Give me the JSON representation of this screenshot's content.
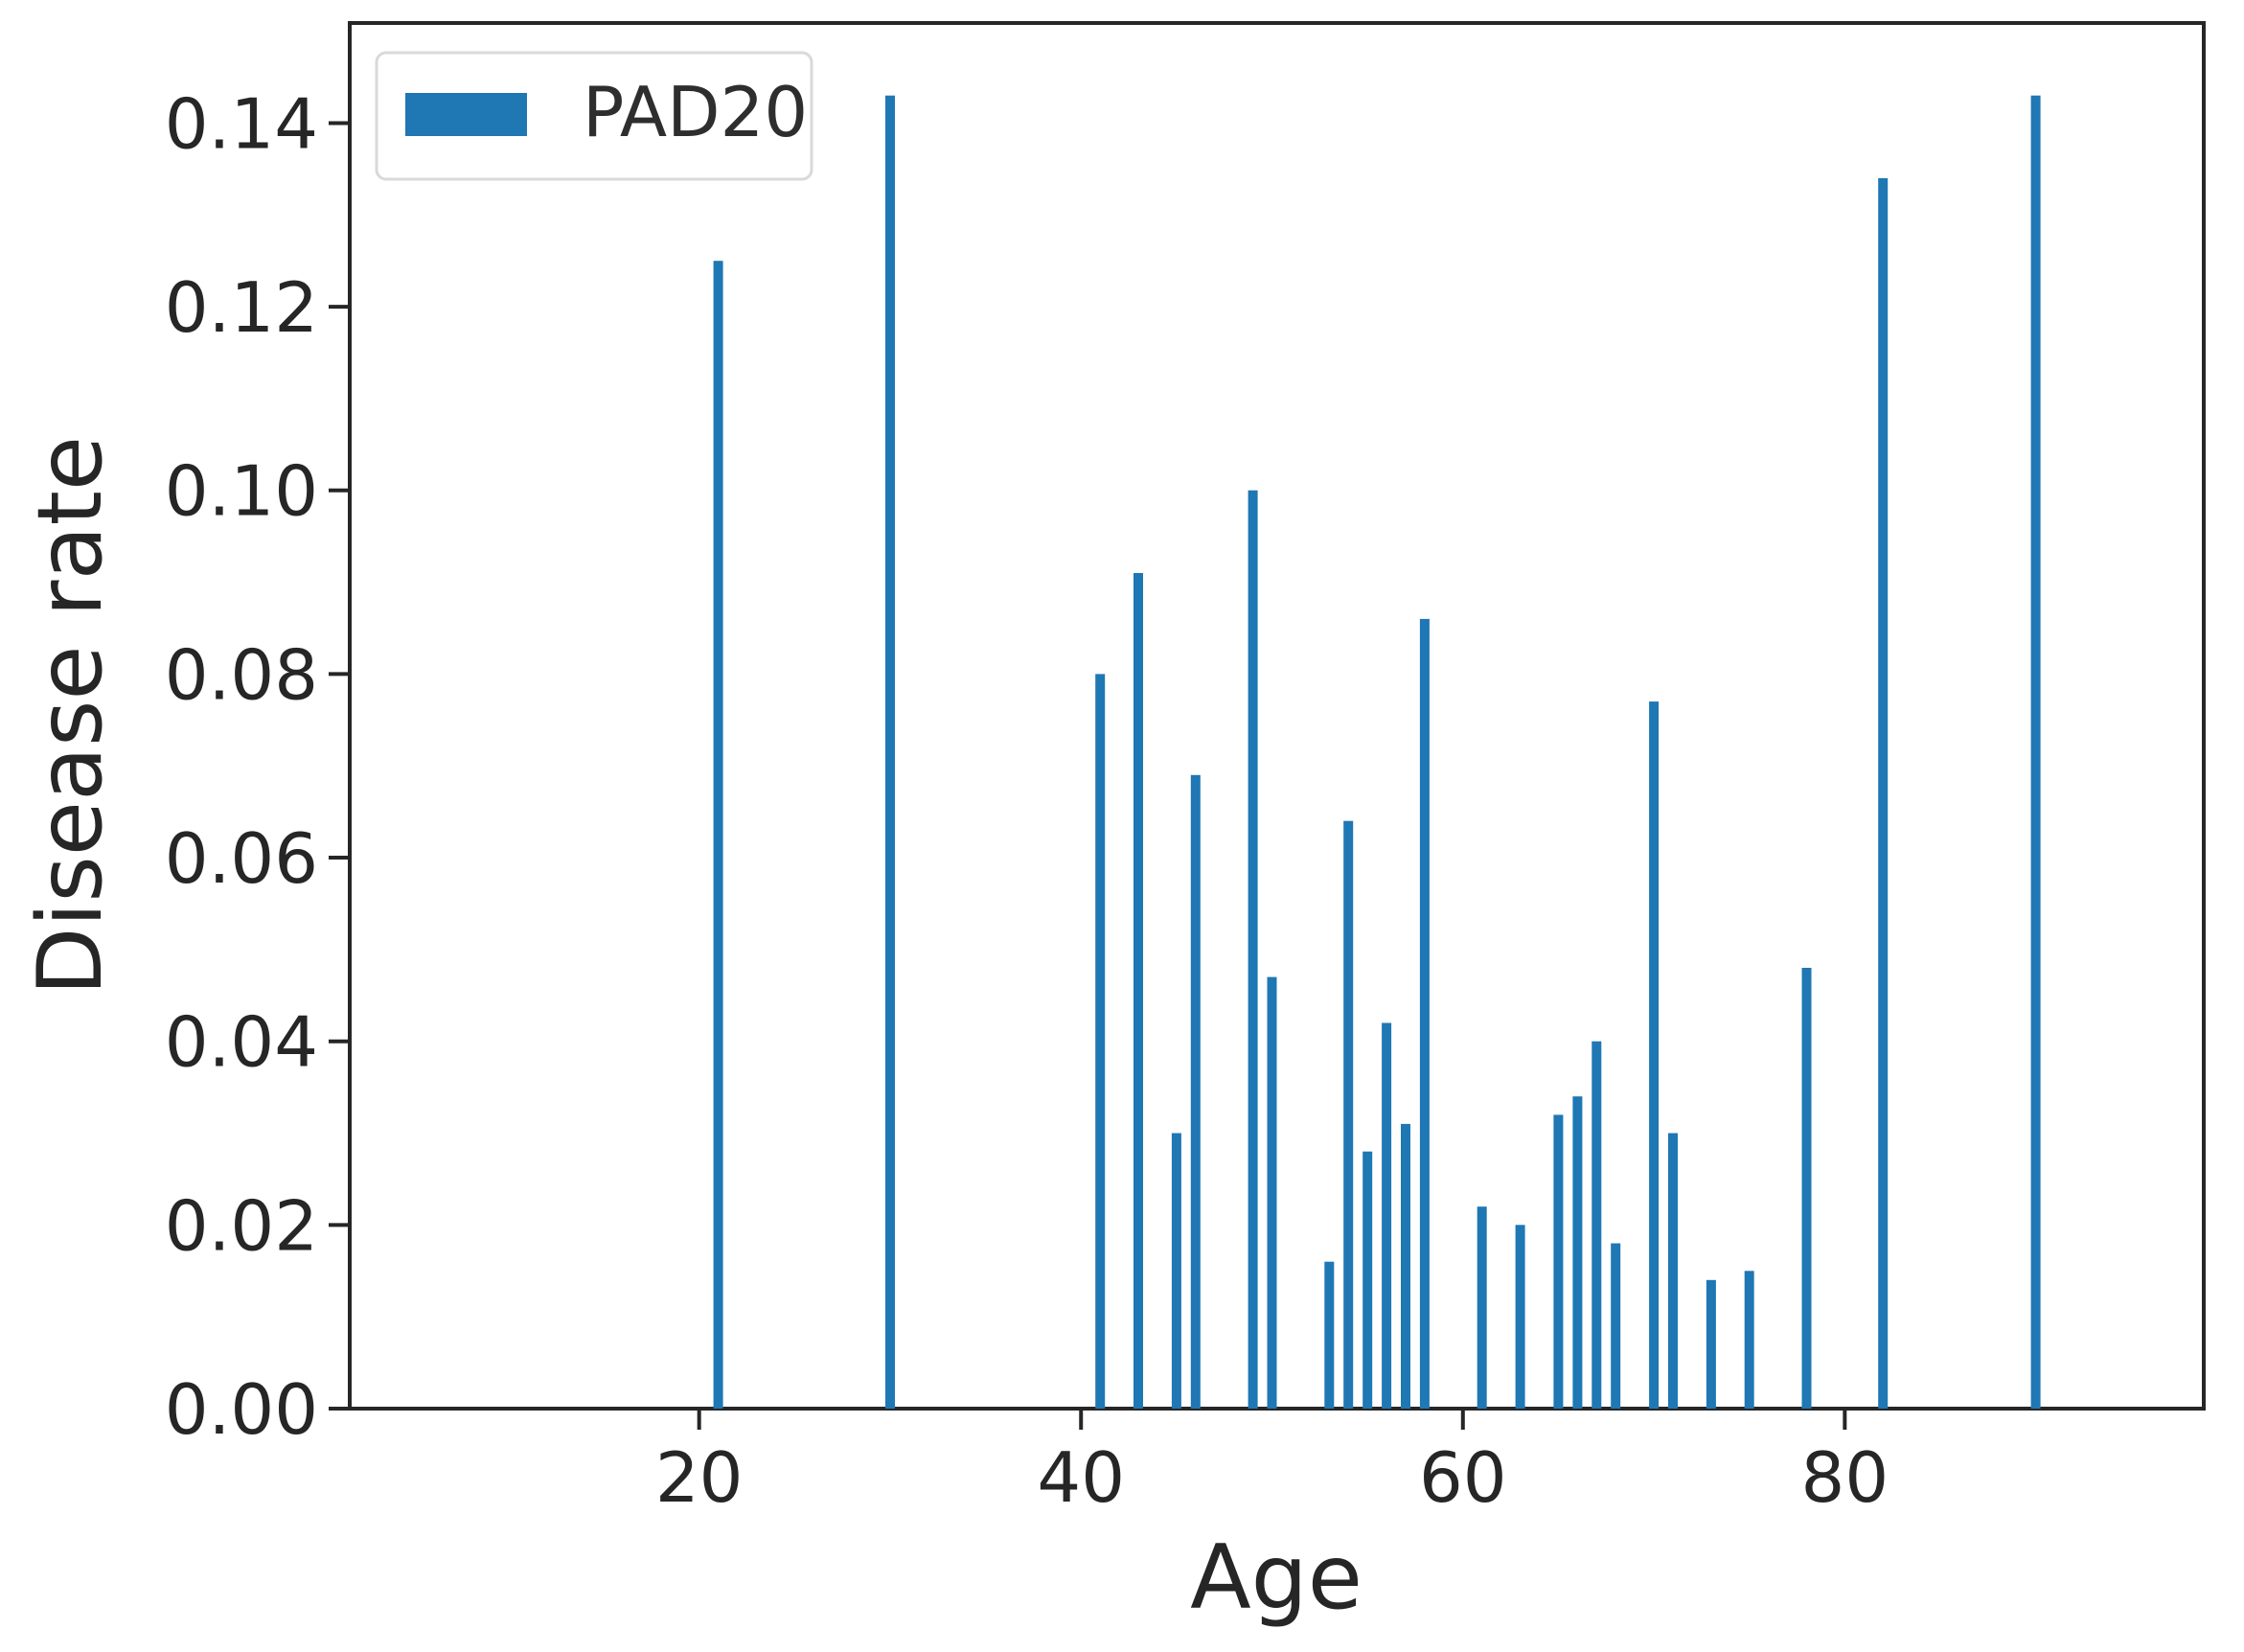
{
  "chart_data": {
    "type": "bar",
    "title": "",
    "xlabel": "Age",
    "ylabel": "Disease rate",
    "legend": {
      "label": "PAD20",
      "position": "upper left"
    },
    "bar_color": "#1f77b4",
    "frame_color": "#262626",
    "text_color": "#262626",
    "legend_border_color": "#d9d9d9",
    "background_color": "#ffffff",
    "grid": false,
    "xlim": [
      1.7,
      98.8
    ],
    "ylim": [
      0,
      0.1509
    ],
    "xticks": [
      {
        "v": 20,
        "label": "20"
      },
      {
        "v": 40,
        "label": "40"
      },
      {
        "v": 60,
        "label": "60"
      },
      {
        "v": 80,
        "label": "80"
      }
    ],
    "yticks": [
      {
        "v": 0.0,
        "label": "0.00"
      },
      {
        "v": 0.02,
        "label": "0.02"
      },
      {
        "v": 0.04,
        "label": "0.04"
      },
      {
        "v": 0.06,
        "label": "0.06"
      },
      {
        "v": 0.08,
        "label": "0.08"
      },
      {
        "v": 0.1,
        "label": "0.10"
      },
      {
        "v": 0.12,
        "label": "0.12"
      },
      {
        "v": 0.14,
        "label": "0.14"
      }
    ],
    "series": [
      {
        "name": "PAD20",
        "points": [
          {
            "age": 21,
            "rate": 0.125
          },
          {
            "age": 30,
            "rate": 0.143
          },
          {
            "age": 41,
            "rate": 0.08
          },
          {
            "age": 43,
            "rate": 0.091
          },
          {
            "age": 45,
            "rate": 0.03
          },
          {
            "age": 46,
            "rate": 0.069
          },
          {
            "age": 49,
            "rate": 0.1
          },
          {
            "age": 50,
            "rate": 0.047
          },
          {
            "age": 53,
            "rate": 0.016
          },
          {
            "age": 54,
            "rate": 0.064
          },
          {
            "age": 55,
            "rate": 0.028
          },
          {
            "age": 56,
            "rate": 0.042
          },
          {
            "age": 57,
            "rate": 0.031
          },
          {
            "age": 58,
            "rate": 0.086
          },
          {
            "age": 61,
            "rate": 0.022
          },
          {
            "age": 63,
            "rate": 0.02
          },
          {
            "age": 65,
            "rate": 0.032
          },
          {
            "age": 66,
            "rate": 0.034
          },
          {
            "age": 67,
            "rate": 0.04
          },
          {
            "age": 68,
            "rate": 0.018
          },
          {
            "age": 70,
            "rate": 0.077
          },
          {
            "age": 71,
            "rate": 0.03
          },
          {
            "age": 73,
            "rate": 0.014
          },
          {
            "age": 75,
            "rate": 0.015
          },
          {
            "age": 78,
            "rate": 0.048
          },
          {
            "age": 82,
            "rate": 0.134
          },
          {
            "age": 90,
            "rate": 0.143
          }
        ]
      }
    ]
  }
}
